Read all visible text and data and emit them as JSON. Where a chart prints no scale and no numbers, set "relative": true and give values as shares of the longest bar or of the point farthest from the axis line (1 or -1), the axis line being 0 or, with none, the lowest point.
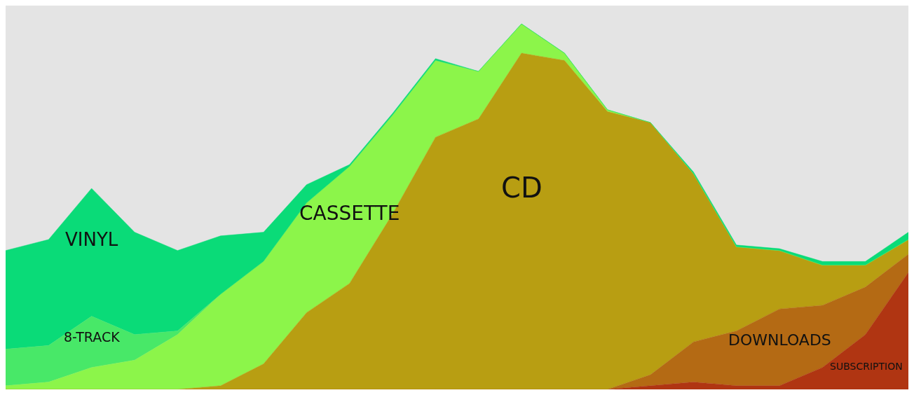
{
  "chart_data": {
    "type": "area",
    "stacked": true,
    "relative": true,
    "legend": false,
    "categories": [
      null,
      null,
      null,
      null,
      null,
      null,
      null,
      null,
      null,
      null,
      null,
      null,
      null,
      null,
      null,
      null,
      null,
      null,
      null,
      null,
      null,
      null
    ],
    "series": [
      {
        "name": "SUBSCRIPTION",
        "color": "#b03512",
        "values": [
          0,
          0,
          0,
          0,
          0,
          0,
          0,
          0,
          0,
          0,
          0,
          0,
          0,
          0,
          0,
          0.01,
          0.02,
          0.01,
          0.01,
          0.06,
          0.15,
          0.32
        ]
      },
      {
        "name": "DOWNLOADS",
        "color": "#b46a14",
        "values": [
          0,
          0,
          0,
          0,
          0,
          0,
          0,
          0,
          0,
          0,
          0,
          0,
          0,
          0,
          0,
          0.03,
          0.11,
          0.15,
          0.21,
          0.17,
          0.13,
          0.05
        ]
      },
      {
        "name": "CD",
        "color": "#b89e12",
        "values": [
          0,
          0,
          0,
          0,
          0,
          0.01,
          0.07,
          0.21,
          0.29,
          0.48,
          0.69,
          0.74,
          0.92,
          0.9,
          0.76,
          0.69,
          0.46,
          0.23,
          0.16,
          0.11,
          0.06,
          0.04
        ]
      },
      {
        "name": "CASSETTE",
        "color": "#8cf54a",
        "values": [
          0.01,
          0.02,
          0.06,
          0.08,
          0.15,
          0.25,
          0.28,
          0.3,
          0.32,
          0.27,
          0.21,
          0.13,
          0.08,
          0.02,
          0.005,
          0,
          0,
          0,
          0,
          0,
          0,
          0
        ]
      },
      {
        "name": "8-TRACK",
        "color": "#48e868",
        "values": [
          0.1,
          0.1,
          0.14,
          0.07,
          0.01,
          0,
          0,
          0,
          0,
          0,
          0,
          0,
          0,
          0,
          0,
          0,
          0,
          0,
          0,
          0,
          0,
          0
        ]
      },
      {
        "name": "VINYL",
        "color": "#0adb78",
        "values": [
          0.27,
          0.29,
          0.35,
          0.28,
          0.22,
          0.16,
          0.08,
          0.05,
          0.005,
          0.005,
          0.005,
          0,
          0,
          0,
          0,
          0,
          0.005,
          0.005,
          0.005,
          0.01,
          0.01,
          0.02
        ]
      }
    ]
  }
}
